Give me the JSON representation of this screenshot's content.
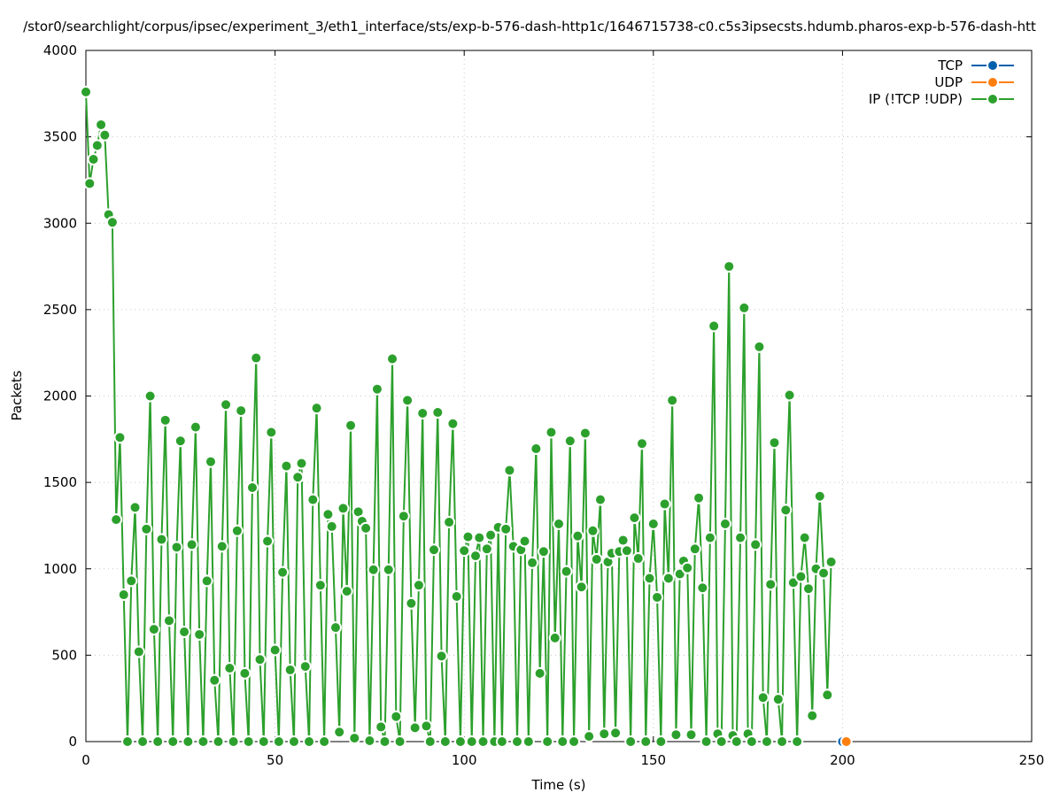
{
  "chart_data": {
    "type": "line",
    "title": "/stor0/searchlight/corpus/ipsec/experiment_3/eth1_interface/sts/exp-b-576-dash-http1c/1646715738-c0.c5s3ipsecsts.hdumb.pharos-exp-b-576-dash-htt",
    "xlabel": "Time (s)",
    "ylabel": "Packets",
    "xlim": [
      0,
      250
    ],
    "ylim": [
      0,
      4000
    ],
    "xticks": [
      "0",
      "50",
      "100",
      "150",
      "200",
      "250"
    ],
    "yticks": [
      "0",
      "500",
      "1000",
      "1500",
      "2000",
      "2500",
      "3000",
      "3500",
      "4000"
    ],
    "grid": true,
    "legend_position": "top-right",
    "series": [
      {
        "name": "TCP",
        "color": "#0060ad",
        "x": [
          200
        ],
        "values": [
          0
        ]
      },
      {
        "name": "UDP",
        "color": "#ff7f0e",
        "x": [
          201
        ],
        "values": [
          0
        ]
      },
      {
        "name": "IP (!TCP  !UDP)",
        "color": "#2ca02c",
        "values": [
          3760,
          3230,
          3370,
          3450,
          3570,
          3510,
          3050,
          3005,
          1285,
          1760,
          850,
          0,
          930,
          1355,
          520,
          0,
          1230,
          2000,
          650,
          0,
          1170,
          1860,
          700,
          0,
          1125,
          1740,
          635,
          0,
          1140,
          1820,
          620,
          0,
          930,
          1620,
          355,
          0,
          1130,
          1950,
          425,
          0,
          1220,
          1915,
          395,
          0,
          1470,
          2220,
          475,
          0,
          1160,
          1790,
          530,
          0,
          980,
          1595,
          415,
          0,
          1530,
          1610,
          435,
          0,
          1400,
          1930,
          905,
          0,
          1315,
          1245,
          660,
          55,
          1350,
          870,
          1830,
          20,
          1330,
          1275,
          1235,
          5,
          995,
          2040,
          85,
          0,
          995,
          2215,
          145,
          0,
          1305,
          1975,
          800,
          80,
          905,
          1900,
          90,
          0,
          1110,
          1905,
          495,
          0,
          1270,
          1840,
          840,
          0,
          1105,
          1185,
          0,
          1075,
          1180,
          0,
          1115,
          1195,
          0,
          1240,
          0,
          1230,
          1570,
          1130,
          0,
          1110,
          1160,
          0,
          1035,
          1695,
          395,
          1100,
          0,
          1790,
          600,
          1260,
          0,
          985,
          1740,
          0,
          1190,
          895,
          1785,
          30,
          1220,
          1055,
          1400,
          45,
          1040,
          1090,
          50,
          1100,
          1165,
          1105,
          0,
          1295,
          1060,
          1725,
          0,
          945,
          1260,
          835,
          0,
          1375,
          945,
          1975,
          40,
          970,
          1045,
          1005,
          40,
          1115,
          1410,
          890,
          0,
          1180,
          2405,
          45,
          0,
          1260,
          2750,
          35,
          0,
          1180,
          2510,
          45,
          0,
          1140,
          2285,
          255,
          0,
          910,
          1730,
          245,
          0,
          1340,
          2005,
          920,
          0,
          955,
          1180,
          885,
          150,
          1000,
          1420,
          975,
          270,
          1040
        ]
      }
    ]
  }
}
